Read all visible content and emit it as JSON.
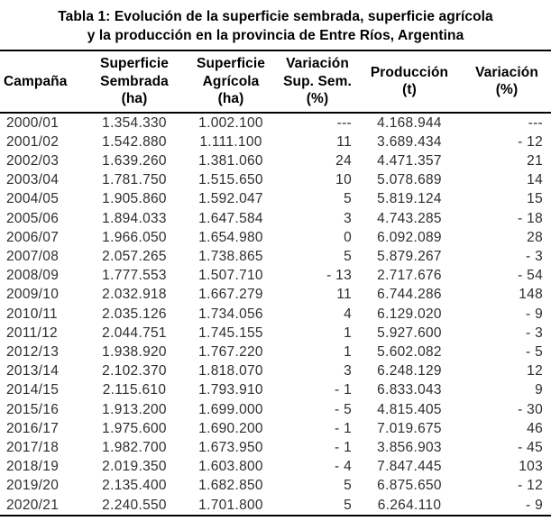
{
  "title": {
    "line1": "Tabla 1: Evolución de la superficie sembrada, superficie agrícola",
    "line2": "y la producción en la provincia de Entre Ríos, Argentina"
  },
  "colors": {
    "background": "#ffffff",
    "title_text": "#000000",
    "data_text": "#2e2e2e",
    "rule": "#000000"
  },
  "chart_data": {
    "type": "table",
    "title": "Tabla 1: Evolución de la superficie sembrada, superficie agrícola y la producción en la provincia de Entre Ríos, Argentina",
    "columns": [
      {
        "id": "campana",
        "label": "Campaña",
        "lines": [
          "Campaña"
        ],
        "header_align": "left",
        "align": "left"
      },
      {
        "id": "sup-sembrada",
        "label": "Superficie Sembrada (ha)",
        "lines": [
          "Superficie",
          "Sembrada",
          "(ha)"
        ],
        "header_align": "center",
        "align": "center"
      },
      {
        "id": "sup-agricola",
        "label": "Superficie Agrícola (ha)",
        "lines": [
          "Superficie",
          "Agrícola",
          "(ha)"
        ],
        "header_align": "center",
        "align": "center"
      },
      {
        "id": "variacion-sup-sem",
        "label": "Variación Sup. Sem. (%)",
        "lines": [
          "Variación",
          "Sup. Sem.",
          "(%)"
        ],
        "header_align": "center",
        "align": "right"
      },
      {
        "id": "produccion",
        "label": "Producción (t)",
        "lines": [
          "Producción",
          "(t)"
        ],
        "header_align": "center",
        "align": "center"
      },
      {
        "id": "variacion-prod",
        "label": "Variación (%)",
        "lines": [
          "Variación",
          "(%)"
        ],
        "header_align": "center",
        "align": "right"
      }
    ],
    "rows": [
      [
        "2000/01",
        "1.354.330",
        "1.002.100",
        "---",
        "4.168.944",
        "---"
      ],
      [
        "2001/02",
        "1.542.880",
        "1.111.100",
        "11",
        "3.689.434",
        "- 12"
      ],
      [
        "2002/03",
        "1.639.260",
        "1.381.060",
        "24",
        "4.471.357",
        "21"
      ],
      [
        "2003/04",
        "1.781.750",
        "1.515.650",
        "10",
        "5.078.689",
        "14"
      ],
      [
        "2004/05",
        "1.905.860",
        "1.592.047",
        "5",
        "5.819.124",
        "15"
      ],
      [
        "2005/06",
        "1.894.033",
        "1.647.584",
        "3",
        "4.743.285",
        "- 18"
      ],
      [
        "2006/07",
        "1.966.050",
        "1.654.980",
        "0",
        "6.092.089",
        "28"
      ],
      [
        "2007/08",
        "2.057.265",
        "1.738.865",
        "5",
        "5.879.267",
        "- 3"
      ],
      [
        "2008/09",
        "1.777.553",
        "1.507.710",
        "- 13",
        "2.717.676",
        "- 54"
      ],
      [
        "2009/10",
        "2.032.918",
        "1.667.279",
        "11",
        "6.744.286",
        "148"
      ],
      [
        "2010/11",
        "2.035.126",
        "1.734.056",
        "4",
        "6.129.020",
        "- 9"
      ],
      [
        "2011/12",
        "2.044.751",
        "1.745.155",
        "1",
        "5.927.600",
        "- 3"
      ],
      [
        "2012/13",
        "1.938.920",
        "1.767.220",
        "1",
        "5.602.082",
        "- 5"
      ],
      [
        "2013/14",
        "2.102.370",
        "1.818.070",
        "3",
        "6.248.129",
        "12"
      ],
      [
        "2014/15",
        "2.115.610",
        "1.793.910",
        "- 1",
        "6.833.043",
        "9"
      ],
      [
        "2015/16",
        "1.913.200",
        "1.699.000",
        "- 5",
        "4.815.405",
        "- 30"
      ],
      [
        "2016/17",
        "1.975.600",
        "1.690.200",
        "- 1",
        "7.019.675",
        "46"
      ],
      [
        "2017/18",
        "1.982.700",
        "1.673.950",
        "- 1",
        "3.856.903",
        "- 45"
      ],
      [
        "2018/19",
        "2.019.350",
        "1.603.800",
        "- 4",
        "7.847.445",
        "103"
      ],
      [
        "2019/20",
        "2.135.400",
        "1.682.850",
        "5",
        "6.875.650",
        "- 12"
      ],
      [
        "2020/21",
        "2.240.550",
        "1.701.800",
        "5",
        "6.264.110",
        "- 9"
      ]
    ]
  }
}
